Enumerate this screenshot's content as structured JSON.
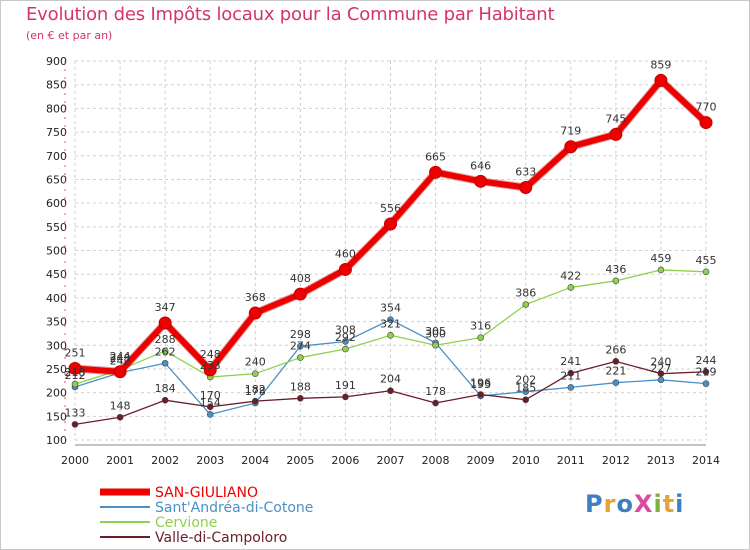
{
  "title": "Evolution des Impôts locaux pour la Commune par Habitant",
  "subtitle": "(en € et par an)",
  "logo": {
    "text": "ProXiti",
    "letters": [
      "P",
      "r",
      "o",
      "X",
      "i",
      "t",
      "i"
    ],
    "colors": [
      "#3d7fc1",
      "#e8a23a",
      "#3d7fc1",
      "#d94aa0",
      "#7bb33a",
      "#e8a23a",
      "#3d7fc1"
    ]
  },
  "colors": {
    "grid": "#d0d0d0",
    "axis": "#888888",
    "title": "#d6336c"
  },
  "chart_data": {
    "type": "line",
    "title": "Evolution des Impôts locaux pour la Commune par Habitant",
    "ylabel": "(en € et par an)",
    "xlabel": "",
    "categories": [
      "2000",
      "2001",
      "2002",
      "2003",
      "2004",
      "2005",
      "2006",
      "2007",
      "2008",
      "2009",
      "2010",
      "2011",
      "2012",
      "2013",
      "2014"
    ],
    "ylim": [
      100,
      900
    ],
    "yticks": [
      100,
      150,
      200,
      250,
      300,
      350,
      400,
      450,
      500,
      550,
      600,
      650,
      700,
      750,
      800,
      850,
      900
    ],
    "grid": true,
    "legend_position": "bottom-left",
    "series": [
      {
        "name": "SAN-GIULIANO",
        "color": "#ee0000",
        "width": 6,
        "marker": 6,
        "values": [
          251,
          244,
          347,
          248,
          368,
          408,
          460,
          556,
          665,
          646,
          633,
          719,
          745,
          859,
          770
        ]
      },
      {
        "name": "Sant'Andréa-di-Cotone",
        "color": "#4a90c8",
        "width": 1.3,
        "marker": 3,
        "values": [
          212,
          242,
          262,
          154,
          178,
          298,
          308,
          354,
          305,
          193,
          202,
          211,
          221,
          227,
          219
        ]
      },
      {
        "name": "Cervione",
        "color": "#8fd14f",
        "width": 1.3,
        "marker": 3,
        "values": [
          218,
          248,
          288,
          233,
          240,
          274,
          292,
          321,
          300,
          316,
          386,
          422,
          436,
          459,
          455
        ]
      },
      {
        "name": "Valle-di-Campoloro",
        "color": "#6b1d2a",
        "width": 1.3,
        "marker": 3,
        "values": [
          133,
          148,
          184,
          170,
          182,
          188,
          191,
          204,
          178,
          196,
          185,
          241,
          266,
          240,
          244
        ]
      }
    ],
    "data_labels": [
      [
        "251",
        "244",
        "347",
        "248",
        "368",
        "408",
        "460",
        "556",
        "665",
        "646",
        "633",
        "719",
        "745",
        "859",
        "770"
      ],
      [
        "212",
        "242",
        "262",
        "154",
        "178",
        "298",
        "308",
        "354",
        "305",
        "193",
        "202",
        "211",
        "221",
        "227",
        "219"
      ],
      [
        "218",
        "248",
        "288",
        "233",
        "240",
        "274",
        "292",
        "321",
        "300",
        "316",
        "386",
        "422",
        "436",
        "459",
        "455"
      ],
      [
        "133",
        "148",
        "184",
        "170",
        "182",
        "188",
        "191",
        "204",
        "178",
        "196",
        "185",
        "241",
        "266",
        "240",
        "244"
      ]
    ]
  }
}
